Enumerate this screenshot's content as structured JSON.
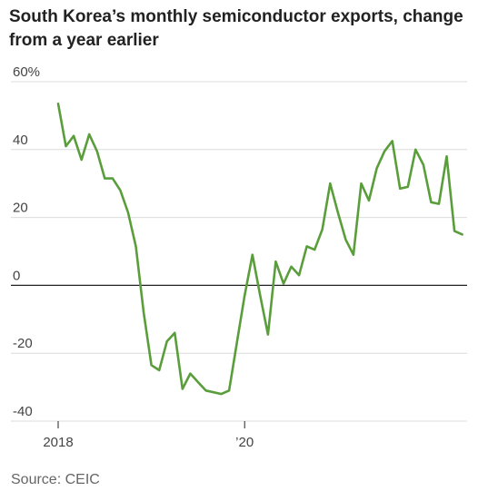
{
  "chart_data": {
    "type": "line",
    "title": "South Korea’s monthly semiconductor exports, change from a year earlier",
    "source": "Source: CEIC",
    "ylim": [
      -40,
      60
    ],
    "y_ticks": [
      "60%",
      "40",
      "20",
      "0",
      "-20",
      "-40"
    ],
    "y_tick_values": [
      60,
      40,
      20,
      0,
      -20,
      -40
    ],
    "x_tick_labels": [
      "2018",
      "’20"
    ],
    "grid": true,
    "series_color": "#5a9e3c",
    "series": [
      {
        "x": [
          "2018-01",
          "2018-02",
          "2018-03",
          "2018-04",
          "2018-05",
          "2018-06",
          "2018-07",
          "2018-08",
          "2018-09",
          "2018-10",
          "2018-11",
          "2018-12",
          "2019-01",
          "2019-02",
          "2019-03",
          "2019-04",
          "2019-05",
          "2019-06",
          "2019-07",
          "2019-08",
          "2019-09",
          "2019-10",
          "2019-11",
          "2019-12",
          "2020-01",
          "2020-02",
          "2020-03",
          "2020-04",
          "2020-05",
          "2020-06",
          "2020-07",
          "2020-08",
          "2020-09",
          "2020-10",
          "2020-11",
          "2020-12",
          "2021-01",
          "2021-02",
          "2021-03",
          "2021-04",
          "2021-05",
          "2021-06",
          "2021-07",
          "2021-08",
          "2021-09",
          "2021-10",
          "2021-11",
          "2021-12",
          "2022-01",
          "2022-02",
          "2022-03",
          "2022-04",
          "2022-05"
        ],
        "values": [
          53.5,
          41,
          44,
          37,
          44.5,
          39.5,
          31.5,
          31.5,
          28,
          21.5,
          11.5,
          -8,
          -23.5,
          -25,
          -16.5,
          -14,
          -30.5,
          -26,
          -28.5,
          -31,
          -31.5,
          -32,
          -31,
          -17,
          -3,
          9,
          -3,
          -14.5,
          7,
          0.5,
          5.5,
          3,
          11.5,
          10.5,
          16.5,
          30,
          21.5,
          13.5,
          9,
          30,
          25,
          34.5,
          39.5,
          42.5,
          28.5,
          29,
          40,
          35.5,
          24.5,
          24,
          38,
          16,
          15
        ]
      }
    ]
  }
}
